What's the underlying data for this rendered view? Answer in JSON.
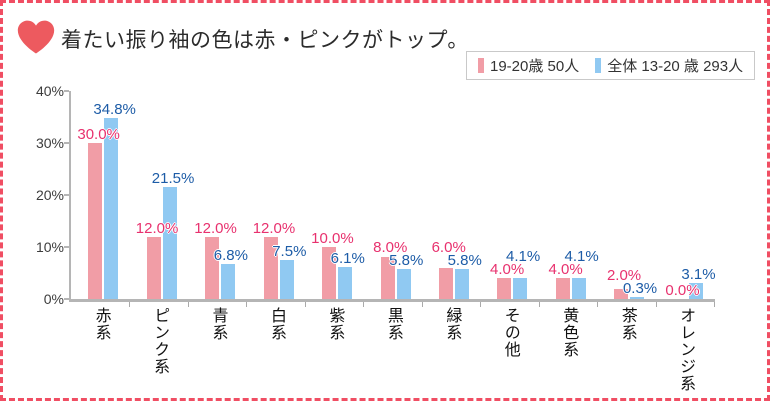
{
  "header": {
    "title": "着たい振り袖の色は赤・ピンクがトップ。",
    "heart_color": "#ed5a5f"
  },
  "legend": {
    "items": [
      {
        "label": "19-20歳 50人",
        "color": "#f19da6"
      },
      {
        "label": "全体 13-20 歳 293人",
        "color": "#90c9f2"
      }
    ]
  },
  "colors": {
    "border": "#f04e63",
    "axis": "#b5b5b5",
    "pink_bar": "#f19da6",
    "blue_bar": "#90c9f2",
    "pink_value_label": "#e8316e",
    "blue_value_label": "#1d5ca7"
  },
  "chart_data": {
    "type": "bar",
    "title": "着たい振り袖の色は赤・ピンクがトップ。",
    "categories": [
      "赤系",
      "ピンク系",
      "青系",
      "白系",
      "紫系",
      "黒系",
      "緑系",
      "その他",
      "黄色系",
      "茶系",
      "オレンジ系"
    ],
    "series": [
      {
        "name": "19-20歳 50人",
        "color": "#f19da6",
        "label_color": "#e8316e",
        "values": [
          30.0,
          12.0,
          12.0,
          12.0,
          10.0,
          8.0,
          6.0,
          4.0,
          4.0,
          2.0,
          0.0
        ]
      },
      {
        "name": "全体 13-20 歳 293人",
        "color": "#90c9f2",
        "label_color": "#1d5ca7",
        "values": [
          34.8,
          21.5,
          6.8,
          7.5,
          6.1,
          5.8,
          5.8,
          4.1,
          4.1,
          0.3,
          3.1
        ]
      }
    ],
    "value_suffix": "%",
    "xlabel": "",
    "ylabel": "",
    "ylim": [
      0,
      40
    ],
    "yticks": [
      0,
      10,
      20,
      30,
      40
    ],
    "ytick_labels": [
      "0%",
      "10%",
      "20%",
      "30%",
      "40%"
    ],
    "grid": false,
    "legend_position": "top-right"
  }
}
